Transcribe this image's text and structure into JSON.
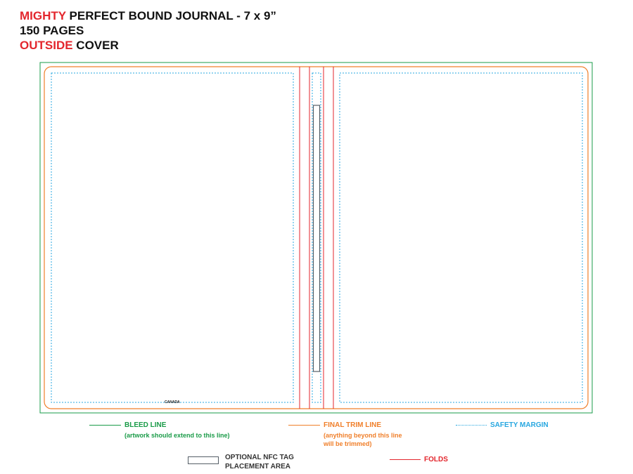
{
  "title": {
    "line1_red": "MIGHTY",
    "line1_rest": " PERFECT BOUND JOURNAL - 7 x 9”",
    "line2": "150 PAGES",
    "line3_red": "OUTSIDE",
    "line3_rest": " COVER"
  },
  "back_cover_mark": "CANADA",
  "legend": {
    "bleed": {
      "label": "BLEED LINE",
      "sub": "(artwork should extend to this line)"
    },
    "trim": {
      "label": "FINAL TRIM LINE",
      "sub1": "(anything beyond this line",
      "sub2": "will be trimmed)"
    },
    "safety": {
      "label": "SAFETY MARGIN"
    },
    "nfc": {
      "label1": "OPTIONAL NFC TAG",
      "label2": "PLACEMENT AREA"
    },
    "folds": {
      "label": "FOLDS"
    }
  },
  "colors": {
    "bleed": "#1a9b48",
    "trim": "#f07f2a",
    "safety": "#27a7e0",
    "folds": "#e3262d",
    "nfc": "#555e66",
    "accent_red": "#e3262d"
  }
}
